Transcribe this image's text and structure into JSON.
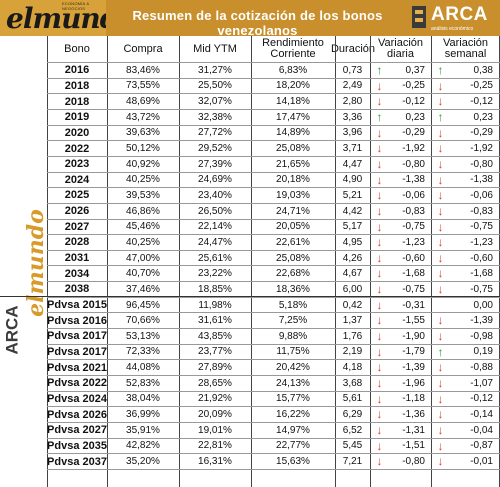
{
  "brand_left": {
    "name": "elmundo",
    "small_text": "ECONOMÍA & NEGOCIOS"
  },
  "title": "Resumen de la cotización de los bonos venezolanos",
  "brand_right": {
    "name": "ARCA",
    "subtitle": "análisis económico"
  },
  "headers": [
    "Bono",
    "Compra",
    "Mid YTM",
    "Rendimiento Corriente",
    "Duración",
    "Variación diaria",
    "Variación semanal"
  ],
  "colors": {
    "accent": "#c88f2c",
    "down": "#e03a30",
    "up": "#2a9a3a"
  },
  "rows": [
    {
      "bono": "2016",
      "compra": "83,46%",
      "ytm": "31,27%",
      "rend": "6,83%",
      "dur": "0,73",
      "vd": "0,37",
      "vd_dir": "up",
      "vs": "0,38",
      "vs_dir": "up"
    },
    {
      "bono": "2018",
      "compra": "73,55%",
      "ytm": "25,50%",
      "rend": "18,20%",
      "dur": "2,49",
      "vd": "-0,25",
      "vd_dir": "down",
      "vs": "-0,25",
      "vs_dir": "down"
    },
    {
      "bono": "2018",
      "compra": "48,69%",
      "ytm": "32,07%",
      "rend": "14,18%",
      "dur": "2,80",
      "vd": "-0,12",
      "vd_dir": "down",
      "vs": "-0,12",
      "vs_dir": "down"
    },
    {
      "bono": "2019",
      "compra": "43,72%",
      "ytm": "32,38%",
      "rend": "17,47%",
      "dur": "3,36",
      "vd": "0,23",
      "vd_dir": "up",
      "vs": "0,23",
      "vs_dir": "up"
    },
    {
      "bono": "2020",
      "compra": "39,63%",
      "ytm": "27,72%",
      "rend": "14,89%",
      "dur": "3,96",
      "vd": "-0,29",
      "vd_dir": "down",
      "vs": "-0,29",
      "vs_dir": "down"
    },
    {
      "bono": "2022",
      "compra": "50,12%",
      "ytm": "29,52%",
      "rend": "25,08%",
      "dur": "3,71",
      "vd": "-1,92",
      "vd_dir": "down",
      "vs": "-1,92",
      "vs_dir": "down"
    },
    {
      "bono": "2023",
      "compra": "40,92%",
      "ytm": "27,39%",
      "rend": "21,65%",
      "dur": "4,47",
      "vd": "-0,80",
      "vd_dir": "down",
      "vs": "-0,80",
      "vs_dir": "down"
    },
    {
      "bono": "2024",
      "compra": "40,25%",
      "ytm": "24,69%",
      "rend": "20,18%",
      "dur": "4,90",
      "vd": "-1,38",
      "vd_dir": "down",
      "vs": "-1,38",
      "vs_dir": "down"
    },
    {
      "bono": "2025",
      "compra": "39,53%",
      "ytm": "23,40%",
      "rend": "19,03%",
      "dur": "5,21",
      "vd": "-0,06",
      "vd_dir": "down",
      "vs": "-0,06",
      "vs_dir": "down"
    },
    {
      "bono": "2026",
      "compra": "46,86%",
      "ytm": "26,50%",
      "rend": "24,71%",
      "dur": "4,42",
      "vd": "-0,83",
      "vd_dir": "down",
      "vs": "-0,83",
      "vs_dir": "down"
    },
    {
      "bono": "2027",
      "compra": "45,46%",
      "ytm": "22,14%",
      "rend": "20,05%",
      "dur": "5,17",
      "vd": "-0,75",
      "vd_dir": "down",
      "vs": "-0,75",
      "vs_dir": "down"
    },
    {
      "bono": "2028",
      "compra": "40,25%",
      "ytm": "24,47%",
      "rend": "22,61%",
      "dur": "4,95",
      "vd": "-1,23",
      "vd_dir": "down",
      "vs": "-1,23",
      "vs_dir": "down"
    },
    {
      "bono": "2031",
      "compra": "47,00%",
      "ytm": "25,61%",
      "rend": "25,08%",
      "dur": "4,26",
      "vd": "-0,60",
      "vd_dir": "down",
      "vs": "-0,60",
      "vs_dir": "down"
    },
    {
      "bono": "2034",
      "compra": "40,70%",
      "ytm": "23,22%",
      "rend": "22,68%",
      "dur": "4,67",
      "vd": "-1,68",
      "vd_dir": "down",
      "vs": "-1,68",
      "vs_dir": "down"
    },
    {
      "bono": "2038",
      "compra": "37,46%",
      "ytm": "18,85%",
      "rend": "18,36%",
      "dur": "6,00",
      "vd": "-0,75",
      "vd_dir": "down",
      "vs": "-0,75",
      "vs_dir": "down"
    },
    {
      "bono": "Pdvsa 2015",
      "compra": "96,45%",
      "ytm": "11,98%",
      "rend": "5,18%",
      "dur": "0,42",
      "vd": "-0,31",
      "vd_dir": "down",
      "vs": "0,00",
      "vs_dir": "none"
    },
    {
      "bono": "Pdvsa 2016",
      "compra": "70,66%",
      "ytm": "31,61%",
      "rend": "7,25%",
      "dur": "1,37",
      "vd": "-1,55",
      "vd_dir": "down",
      "vs": "-1,39",
      "vs_dir": "down"
    },
    {
      "bono": "Pdvsa 2017",
      "compra": "53,13%",
      "ytm": "43,85%",
      "rend": "9,88%",
      "dur": "1,76",
      "vd": "-1,90",
      "vd_dir": "down",
      "vs": "-0,98",
      "vs_dir": "down"
    },
    {
      "bono": "Pdvsa 2017",
      "compra": "72,33%",
      "ytm": "23,77%",
      "rend": "11,75%",
      "dur": "2,19",
      "vd": "-1,79",
      "vd_dir": "down",
      "vs": "0,19",
      "vs_dir": "up"
    },
    {
      "bono": "Pdvsa 2021",
      "compra": "44,08%",
      "ytm": "27,89%",
      "rend": "20,42%",
      "dur": "4,18",
      "vd": "-1,39",
      "vd_dir": "down",
      "vs": "-0,88",
      "vs_dir": "down"
    },
    {
      "bono": "Pdvsa 2022",
      "compra": "52,83%",
      "ytm": "28,65%",
      "rend": "24,13%",
      "dur": "3,68",
      "vd": "-1,96",
      "vd_dir": "down",
      "vs": "-1,07",
      "vs_dir": "down"
    },
    {
      "bono": "Pdvsa 2024",
      "compra": "38,04%",
      "ytm": "21,92%",
      "rend": "15,77%",
      "dur": "5,61",
      "vd": "-1,18",
      "vd_dir": "down",
      "vs": "-0,12",
      "vs_dir": "down"
    },
    {
      "bono": "Pdvsa 2026",
      "compra": "36,99%",
      "ytm": "20,09%",
      "rend": "16,22%",
      "dur": "6,29",
      "vd": "-1,36",
      "vd_dir": "down",
      "vs": "-0,14",
      "vs_dir": "down"
    },
    {
      "bono": "Pdvsa 2027",
      "compra": "35,91%",
      "ytm": "19,01%",
      "rend": "14,97%",
      "dur": "6,52",
      "vd": "-1,31",
      "vd_dir": "down",
      "vs": "-0,04",
      "vs_dir": "down"
    },
    {
      "bono": "Pdvsa 2035",
      "compra": "42,82%",
      "ytm": "22,81%",
      "rend": "22,77%",
      "dur": "5,45",
      "vd": "-1,51",
      "vd_dir": "down",
      "vs": "-0,87",
      "vs_dir": "down"
    },
    {
      "bono": "Pdvsa 2037",
      "compra": "35,20%",
      "ytm": "16,31%",
      "rend": "15,63%",
      "dur": "7,21",
      "vd": "-0,80",
      "vd_dir": "down",
      "vs": "-0,01",
      "vs_dir": "down"
    }
  ]
}
